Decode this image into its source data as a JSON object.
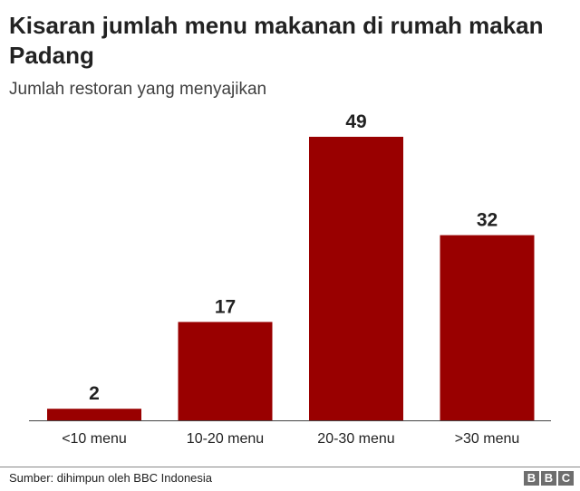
{
  "title": "Kisaran jumlah menu makanan di rumah makan Padang",
  "subtitle": "Jumlah restoran yang menyajikan",
  "source": "Sumber: dihimpun oleh BBC Indonesia",
  "logo": "BBC",
  "chart_data": {
    "type": "bar",
    "title": "Kisaran jumlah menu makanan di rumah makan Padang",
    "subtitle": "Jumlah restoran yang menyajikan",
    "categories": [
      "<10 menu",
      "10-20 menu",
      "20-30 menu",
      ">30 menu"
    ],
    "values": [
      2,
      17,
      49,
      32
    ],
    "color": "#990000",
    "grid": false,
    "data_labels": true
  }
}
